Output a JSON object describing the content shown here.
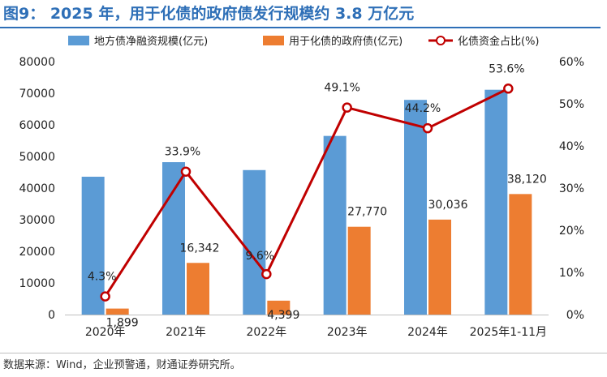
{
  "header": {
    "title": "图9： 2025 年，用于化债的政府债发行规模约 3.8 万亿元"
  },
  "footer": {
    "source": "数据来源：Wind，企业预警通，财通证券研究所。"
  },
  "colors": {
    "bar1": "#5B9BD5",
    "bar2": "#ED7D31",
    "line": "#C00000",
    "title": "#2E6FB7"
  },
  "chart_data": {
    "type": "bar",
    "categories": [
      "2020年",
      "2021年",
      "2022年",
      "2023年",
      "2024年",
      "2025年1-11月"
    ],
    "series": [
      {
        "name": "地方债净融资规模(亿元)",
        "type": "bar",
        "axis": "left",
        "values": [
          43600,
          48200,
          45700,
          56500,
          67900,
          71100
        ]
      },
      {
        "name": "用于化债的政府债(亿元)",
        "type": "bar",
        "axis": "left",
        "values": [
          1899,
          16342,
          4399,
          27770,
          30036,
          38120
        ],
        "labels": [
          "1,899",
          "16,342",
          "4,399",
          "27,770",
          "30,036",
          "38,120"
        ]
      },
      {
        "name": "化债资金占比(%)",
        "type": "line",
        "axis": "right",
        "values": [
          4.3,
          33.9,
          9.6,
          49.1,
          44.2,
          53.6
        ],
        "labels": [
          "4.3%",
          "33.9%",
          "9.6%",
          "49.1%",
          "44.2%",
          "53.6%"
        ]
      }
    ],
    "left_axis": {
      "ylim": [
        0,
        80000
      ],
      "ticks": [
        "0",
        "10000",
        "20000",
        "30000",
        "40000",
        "50000",
        "60000",
        "70000",
        "80000"
      ]
    },
    "right_axis": {
      "ylim": [
        0,
        60
      ],
      "ticks": [
        "0%",
        "10%",
        "20%",
        "30%",
        "40%",
        "50%",
        "60%"
      ]
    },
    "legend": "top",
    "grid": false
  }
}
